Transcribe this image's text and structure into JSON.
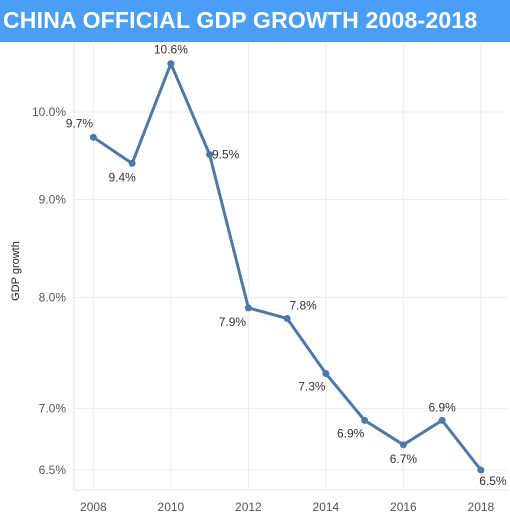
{
  "chart_data": {
    "type": "line",
    "title": "CHINA OFFICIAL GDP GROWTH 2008-2018",
    "xlabel": "",
    "ylabel": "GDP growth",
    "series": [
      {
        "x": [
          2008,
          2009,
          2010,
          2011,
          2012,
          2013,
          2014,
          2015,
          2016,
          2017,
          2018
        ],
        "values": [
          9.7,
          9.4,
          10.6,
          9.5,
          7.9,
          7.8,
          7.3,
          6.9,
          6.7,
          6.9,
          6.5
        ],
        "color": "#4e79a7"
      }
    ],
    "data_labels": [
      "9.7%",
      "9.4%",
      "10.6%",
      "9.5%",
      "7.9%",
      "7.8%",
      "7.3%",
      "6.9%",
      "6.7%",
      "6.9%",
      "6.5%"
    ],
    "y_scale": "log",
    "ylim": [
      6.5,
      11.0
    ],
    "y_ticks": [
      6.5,
      7.0,
      8.0,
      9.0,
      10.0
    ],
    "y_tick_labels": [
      "6.5%",
      "7.0%",
      "8.0%",
      "9.0%",
      "10.0%"
    ],
    "x_ticks": [
      2008,
      2010,
      2012,
      2014,
      2016,
      2018
    ],
    "x_tick_labels": [
      "2008",
      "2010",
      "2012",
      "2014",
      "2016",
      "2018"
    ],
    "grid": true,
    "legend": "none",
    "title_bar_color": "#4a9ef5"
  }
}
